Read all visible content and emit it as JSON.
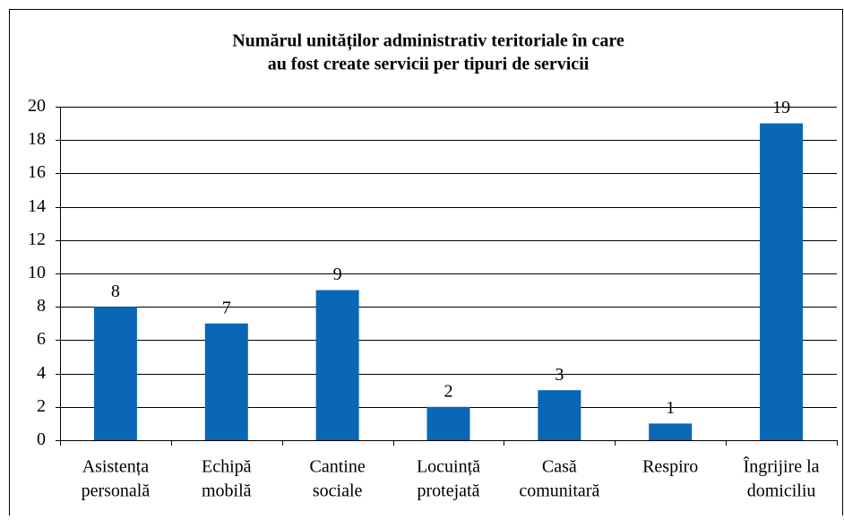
{
  "chart_data": {
    "type": "bar",
    "title": [
      "Numărul unităților administrativ teritoriale în care",
      "au fost create servicii per tipuri de servicii"
    ],
    "categories": [
      [
        "Asistența",
        "personală"
      ],
      [
        "Echipă",
        "mobilă"
      ],
      [
        "Cantine",
        "sociale"
      ],
      [
        "Locuință",
        "protejată"
      ],
      [
        "Casă",
        "comunitară"
      ],
      [
        "Respiro"
      ],
      [
        "Îngrijire la",
        "domiciliu"
      ]
    ],
    "values": [
      8,
      7,
      9,
      2,
      3,
      1,
      19
    ],
    "color": "#0a67b5",
    "ylim": [
      0,
      20
    ],
    "yticks": [
      0,
      2,
      4,
      6,
      8,
      10,
      12,
      14,
      16,
      18,
      20
    ],
    "grid": true
  }
}
